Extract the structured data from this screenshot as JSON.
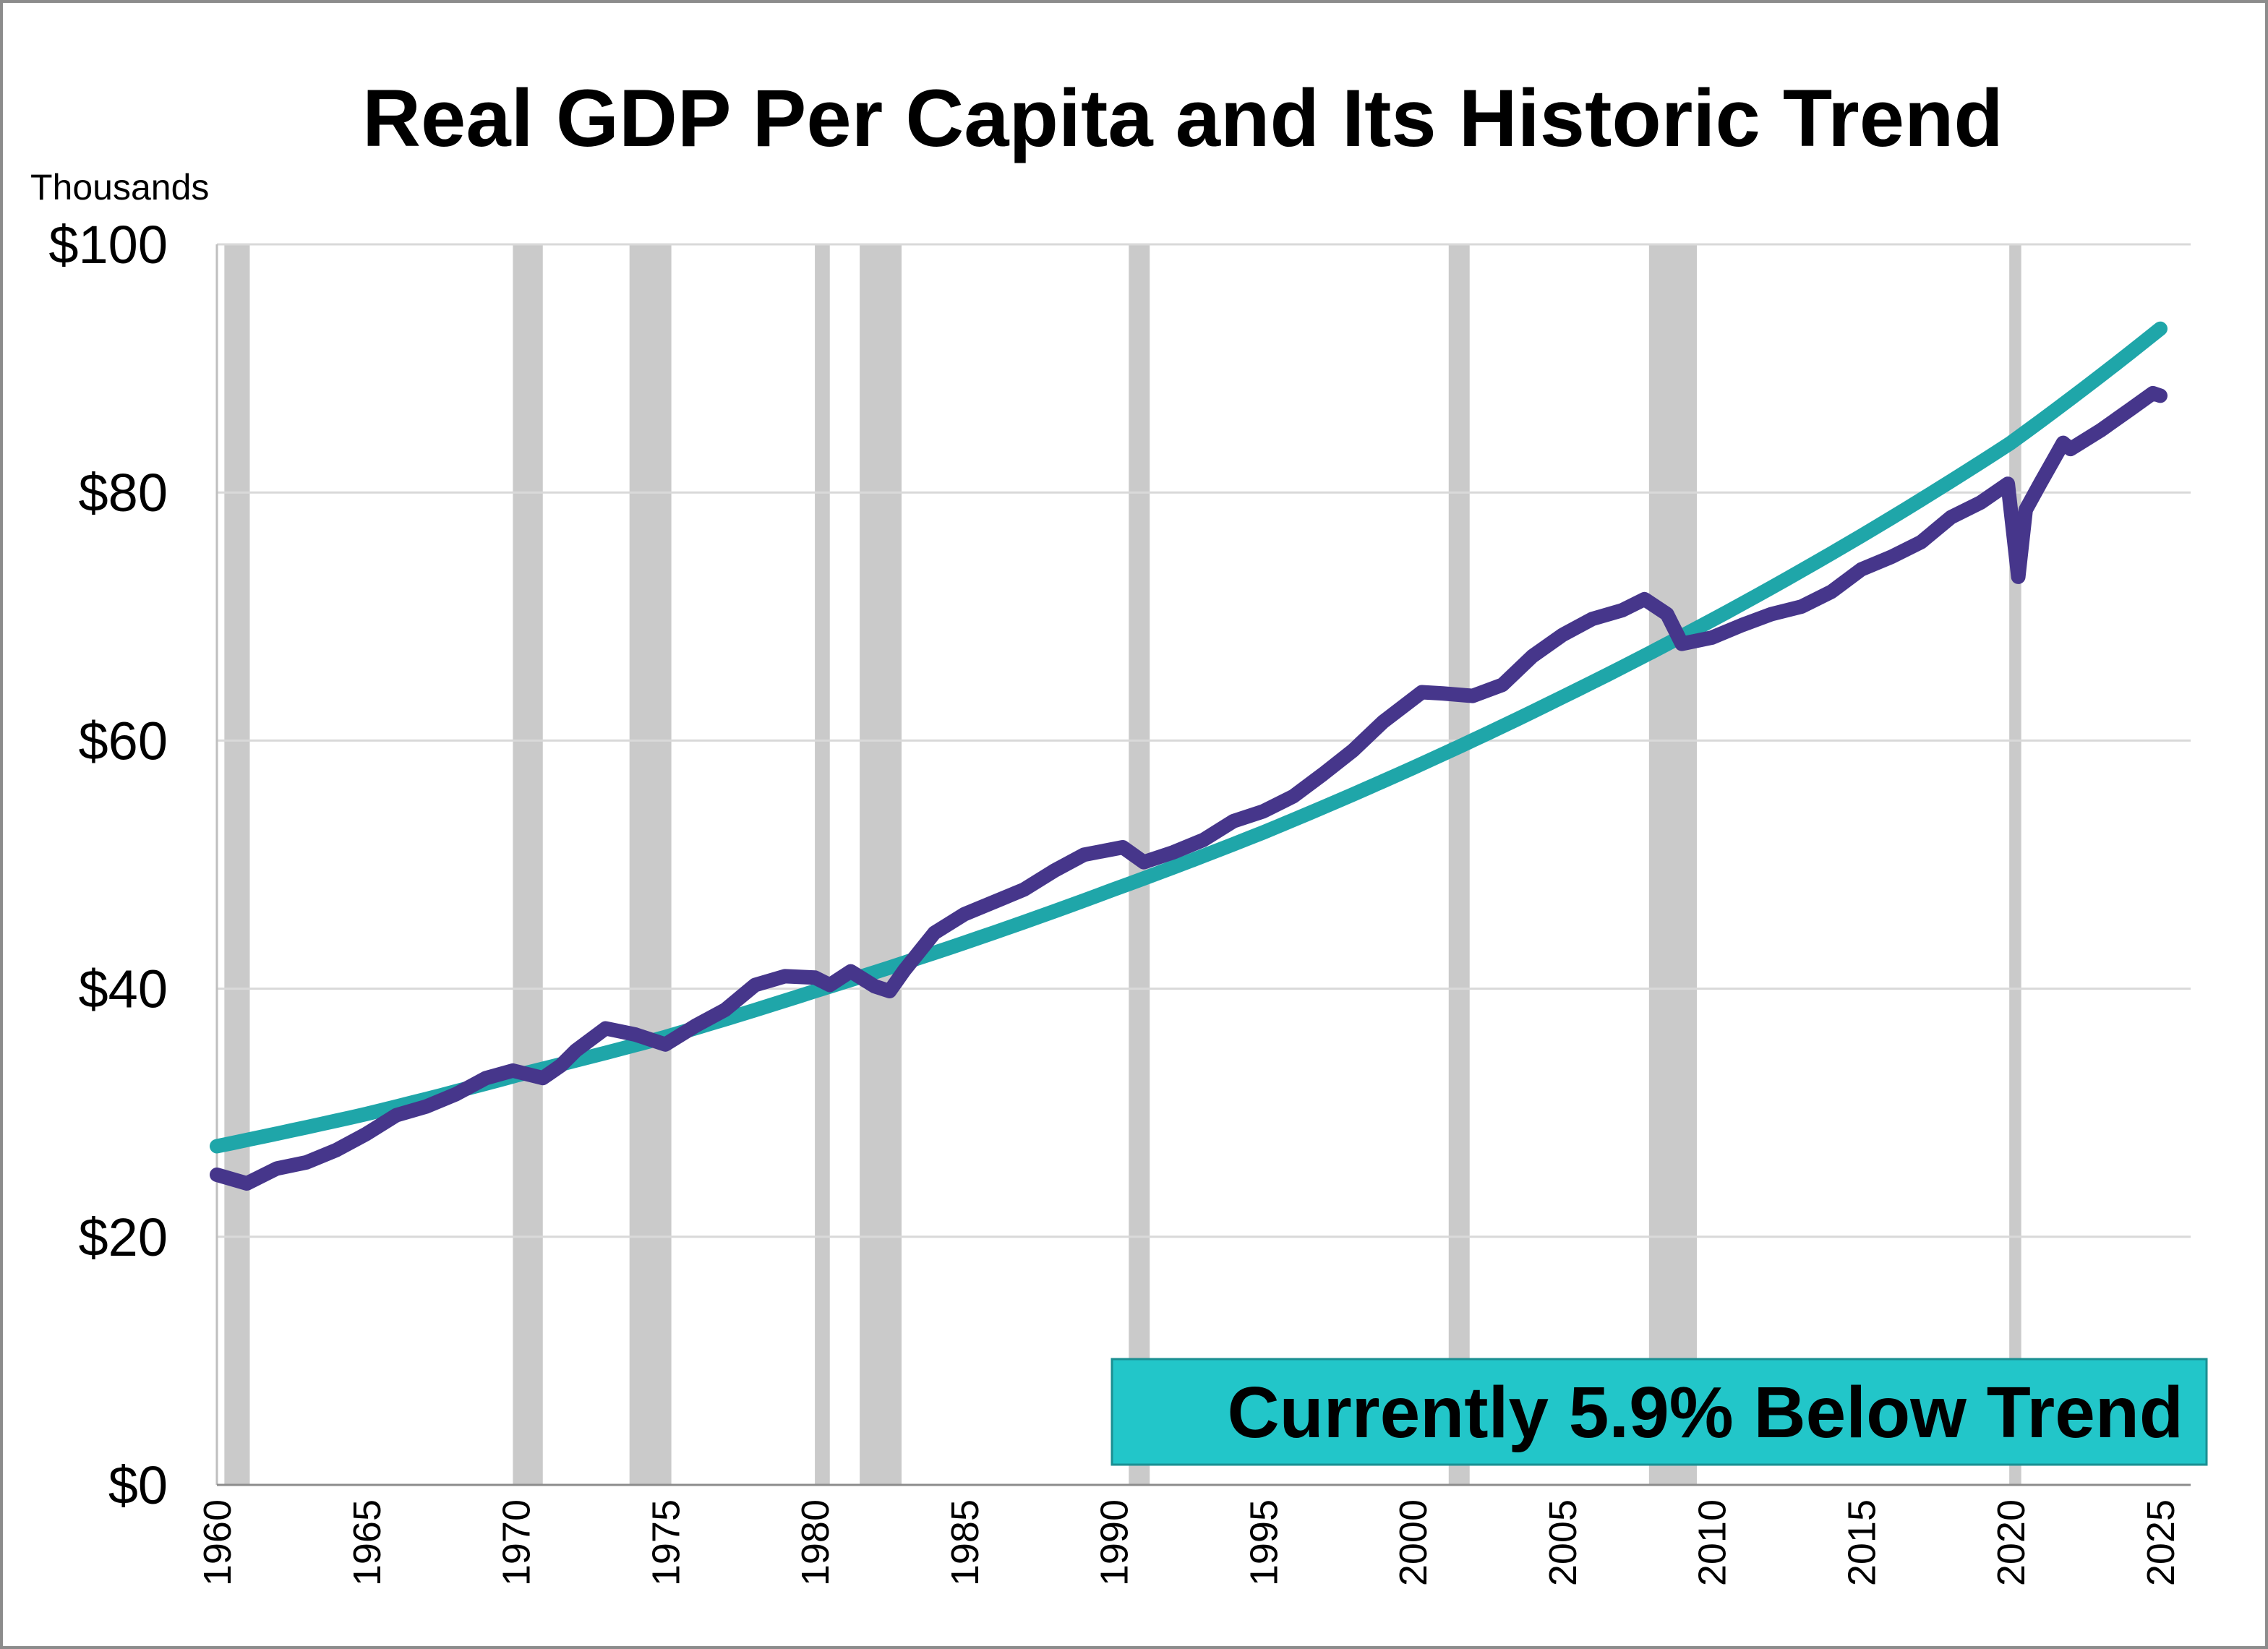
{
  "chart_data": {
    "type": "line",
    "title": "Real GDP Per Capita and Its Historic Trend",
    "ylabel": "Thousands",
    "xlabel": "",
    "xlim": [
      1960,
      2025
    ],
    "ylim": [
      0,
      100
    ],
    "x_ticks": [
      "1960",
      "1965",
      "1970",
      "1975",
      "1980",
      "1985",
      "1990",
      "1995",
      "2000",
      "2005",
      "2010",
      "2015",
      "2020",
      "2025"
    ],
    "y_ticks": [
      {
        "value": 0,
        "label": "$0"
      },
      {
        "value": 20,
        "label": "$20"
      },
      {
        "value": 40,
        "label": "$40"
      },
      {
        "value": 60,
        "label": "$60"
      },
      {
        "value": 80,
        "label": "$80"
      },
      {
        "value": 100,
        "label": "$100"
      }
    ],
    "grid": "horizontal",
    "annotation": "Currently 5.9% Below Trend",
    "colors": {
      "gdp": "#46368b",
      "trend": "#1fa6a9",
      "recession": "#cacaca",
      "annotation_bg": "#22c6c9",
      "grid": "#d9d9d9"
    },
    "recessions": [
      [
        1960.25,
        1961.1
      ],
      [
        1969.9,
        1970.9
      ],
      [
        1973.8,
        1975.2
      ],
      [
        1980.0,
        1980.5
      ],
      [
        1981.5,
        1982.9
      ],
      [
        1990.5,
        1991.2
      ],
      [
        2001.2,
        2001.9
      ],
      [
        2007.9,
        2009.5
      ],
      [
        2019.95,
        2020.35
      ]
    ],
    "series": [
      {
        "key": "gdp",
        "points": [
          [
            1960,
            25.0
          ],
          [
            1961,
            24.3
          ],
          [
            1962,
            25.5
          ],
          [
            1963,
            26.0
          ],
          [
            1964,
            27.0
          ],
          [
            1965,
            28.3
          ],
          [
            1966,
            29.8
          ],
          [
            1967,
            30.5
          ],
          [
            1968,
            31.5
          ],
          [
            1969,
            32.8
          ],
          [
            1969.9,
            33.4
          ],
          [
            1970.9,
            32.8
          ],
          [
            1971.5,
            33.8
          ],
          [
            1972,
            35.0
          ],
          [
            1973,
            36.8
          ],
          [
            1974,
            36.3
          ],
          [
            1975,
            35.5
          ],
          [
            1976,
            37.0
          ],
          [
            1977,
            38.3
          ],
          [
            1978,
            40.3
          ],
          [
            1979,
            41.0
          ],
          [
            1980,
            40.9
          ],
          [
            1980.5,
            40.3
          ],
          [
            1981.2,
            41.4
          ],
          [
            1982,
            40.2
          ],
          [
            1982.5,
            39.8
          ],
          [
            1983,
            41.5
          ],
          [
            1984,
            44.5
          ],
          [
            1985,
            46.0
          ],
          [
            1986,
            47.0
          ],
          [
            1987,
            48.0
          ],
          [
            1988,
            49.5
          ],
          [
            1989,
            50.8
          ],
          [
            1990.3,
            51.4
          ],
          [
            1991,
            50.2
          ],
          [
            1992,
            51.0
          ],
          [
            1993,
            52.0
          ],
          [
            1994,
            53.5
          ],
          [
            1995,
            54.3
          ],
          [
            1996,
            55.5
          ],
          [
            1997,
            57.3
          ],
          [
            1998,
            59.2
          ],
          [
            1999,
            61.5
          ],
          [
            2000.3,
            63.9
          ],
          [
            2001,
            63.8
          ],
          [
            2002,
            63.6
          ],
          [
            2003,
            64.5
          ],
          [
            2004,
            66.8
          ],
          [
            2005,
            68.5
          ],
          [
            2006,
            69.8
          ],
          [
            2007,
            70.5
          ],
          [
            2007.75,
            71.4
          ],
          [
            2008.5,
            70.2
          ],
          [
            2009,
            67.8
          ],
          [
            2010,
            68.3
          ],
          [
            2011,
            69.3
          ],
          [
            2012,
            70.2
          ],
          [
            2013,
            70.8
          ],
          [
            2014,
            72.0
          ],
          [
            2015,
            73.8
          ],
          [
            2016,
            74.8
          ],
          [
            2017,
            76.0
          ],
          [
            2018,
            78.0
          ],
          [
            2019,
            79.2
          ],
          [
            2019.9,
            80.7
          ],
          [
            2020.25,
            73.2
          ],
          [
            2020.5,
            78.6
          ],
          [
            2021,
            80.8
          ],
          [
            2021.75,
            84.0
          ],
          [
            2022,
            83.5
          ],
          [
            2023,
            85.0
          ],
          [
            2024,
            86.7
          ],
          [
            2024.75,
            88.0
          ],
          [
            2025,
            87.8
          ]
        ]
      },
      {
        "key": "trend",
        "points": [
          [
            1960,
            27.3
          ],
          [
            1965,
            29.9
          ],
          [
            1970,
            33.0
          ],
          [
            1975,
            36.1
          ],
          [
            1980,
            39.8
          ],
          [
            1985,
            43.7
          ],
          [
            1990,
            48.0
          ],
          [
            1995,
            52.6
          ],
          [
            2000,
            57.8
          ],
          [
            2005,
            63.5
          ],
          [
            2010,
            69.7
          ],
          [
            2015,
            76.5
          ],
          [
            2020,
            84.0
          ],
          [
            2025,
            93.2
          ]
        ]
      }
    ]
  }
}
